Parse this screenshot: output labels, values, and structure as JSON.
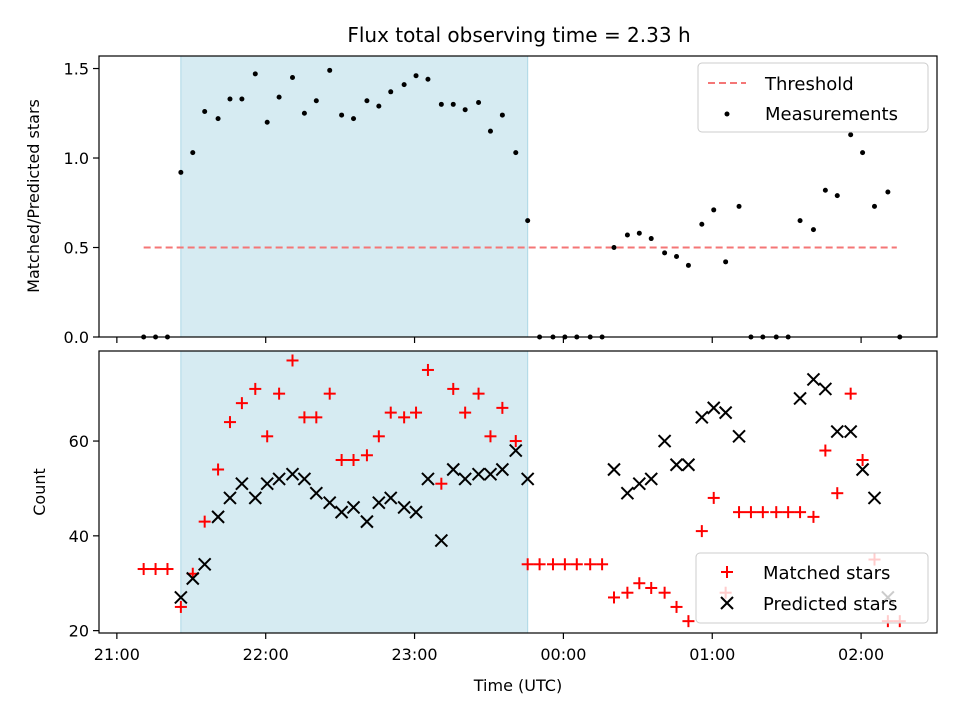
{
  "chart_data": {
    "title": "Flux total observing time = 2.33 h",
    "xlabel": "Time (UTC)",
    "x_tick_labels": [
      "21:00",
      "22:00",
      "23:00",
      "00:00",
      "01:00",
      "02:00"
    ],
    "x_ticks_hours": [
      21,
      22,
      23,
      24,
      25,
      26
    ],
    "xlim_hours": [
      20.88,
      26.51
    ],
    "shaded_interval_hours": [
      21.43,
      23.76
    ],
    "shade_color": "#add8e6",
    "top": {
      "type": "scatter",
      "ylabel": "Matched/Predicted stars",
      "ylim": [
        0,
        1.57
      ],
      "y_ticks": [
        0.0,
        0.5,
        1.0,
        1.5
      ],
      "y_tick_labels": [
        "0.0",
        "0.5",
        "1.0",
        "1.5"
      ],
      "threshold": {
        "name": "Threshold",
        "value": 0.5,
        "x_range_hours": [
          21.18,
          26.24
        ],
        "color": "#f47676"
      },
      "series_name": "Measurements",
      "legend_position": "top-right",
      "points": [
        [
          21.18,
          0
        ],
        [
          21.26,
          0
        ],
        [
          21.34,
          0
        ],
        [
          21.43,
          0.92
        ],
        [
          21.51,
          1.03
        ],
        [
          21.59,
          1.26
        ],
        [
          21.68,
          1.22
        ],
        [
          21.76,
          1.33
        ],
        [
          21.84,
          1.33
        ],
        [
          21.93,
          1.47
        ],
        [
          22.01,
          1.2
        ],
        [
          22.09,
          1.34
        ],
        [
          22.18,
          1.45
        ],
        [
          22.26,
          1.25
        ],
        [
          22.34,
          1.32
        ],
        [
          22.43,
          1.49
        ],
        [
          22.51,
          1.24
        ],
        [
          22.59,
          1.22
        ],
        [
          22.68,
          1.32
        ],
        [
          22.76,
          1.29
        ],
        [
          22.84,
          1.37
        ],
        [
          22.93,
          1.41
        ],
        [
          23.01,
          1.46
        ],
        [
          23.09,
          1.44
        ],
        [
          23.18,
          1.3
        ],
        [
          23.26,
          1.3
        ],
        [
          23.34,
          1.27
        ],
        [
          23.43,
          1.31
        ],
        [
          23.51,
          1.15
        ],
        [
          23.59,
          1.24
        ],
        [
          23.68,
          1.03
        ],
        [
          23.76,
          0.65
        ],
        [
          23.84,
          0
        ],
        [
          23.93,
          0
        ],
        [
          24.01,
          0
        ],
        [
          24.09,
          0
        ],
        [
          24.18,
          0
        ],
        [
          24.26,
          0
        ],
        [
          24.34,
          0.5
        ],
        [
          24.43,
          0.57
        ],
        [
          24.51,
          0.58
        ],
        [
          24.59,
          0.55
        ],
        [
          24.68,
          0.47
        ],
        [
          24.76,
          0.45
        ],
        [
          24.84,
          0.4
        ],
        [
          24.93,
          0.63
        ],
        [
          25.01,
          0.71
        ],
        [
          25.09,
          0.42
        ],
        [
          25.18,
          0.73
        ],
        [
          25.26,
          0
        ],
        [
          25.34,
          0
        ],
        [
          25.43,
          0
        ],
        [
          25.51,
          0
        ],
        [
          25.59,
          0.65
        ],
        [
          25.68,
          0.6
        ],
        [
          25.76,
          0.82
        ],
        [
          25.84,
          0.79
        ],
        [
          25.93,
          1.13
        ],
        [
          26.01,
          1.03
        ],
        [
          26.09,
          0.73
        ],
        [
          26.18,
          0.81
        ],
        [
          26.26,
          0
        ]
      ]
    },
    "bottom": {
      "type": "scatter",
      "ylabel": "Count",
      "ylim": [
        19.5,
        79
      ],
      "y_ticks": [
        20,
        40,
        60
      ],
      "y_tick_labels": [
        "20",
        "40",
        "60"
      ],
      "legend_position": "bottom-right",
      "series": [
        {
          "name": "Matched stars",
          "marker": "plus",
          "color": "#ff0000",
          "points": [
            [
              21.18,
              33
            ],
            [
              21.26,
              33
            ],
            [
              21.34,
              33
            ],
            [
              21.43,
              25
            ],
            [
              21.51,
              32
            ],
            [
              21.59,
              43
            ],
            [
              21.68,
              54
            ],
            [
              21.76,
              64
            ],
            [
              21.84,
              68
            ],
            [
              21.93,
              71
            ],
            [
              22.01,
              61
            ],
            [
              22.09,
              70
            ],
            [
              22.18,
              77
            ],
            [
              22.26,
              65
            ],
            [
              22.34,
              65
            ],
            [
              22.43,
              70
            ],
            [
              22.51,
              56
            ],
            [
              22.59,
              56
            ],
            [
              22.68,
              57
            ],
            [
              22.76,
              61
            ],
            [
              22.84,
              66
            ],
            [
              22.93,
              65
            ],
            [
              23.01,
              66
            ],
            [
              23.09,
              75
            ],
            [
              23.18,
              51
            ],
            [
              23.26,
              71
            ],
            [
              23.34,
              66
            ],
            [
              23.43,
              70
            ],
            [
              23.51,
              61
            ],
            [
              23.59,
              67
            ],
            [
              23.68,
              60
            ],
            [
              23.76,
              34
            ],
            [
              23.84,
              34
            ],
            [
              23.93,
              34
            ],
            [
              24.01,
              34
            ],
            [
              24.09,
              34
            ],
            [
              24.18,
              34
            ],
            [
              24.26,
              34
            ],
            [
              24.34,
              27
            ],
            [
              24.43,
              28
            ],
            [
              24.51,
              30
            ],
            [
              24.59,
              29
            ],
            [
              24.68,
              28
            ],
            [
              24.76,
              25
            ],
            [
              24.84,
              22
            ],
            [
              24.93,
              41
            ],
            [
              25.01,
              48
            ],
            [
              25.09,
              28
            ],
            [
              25.18,
              45
            ],
            [
              25.26,
              45
            ],
            [
              25.34,
              45
            ],
            [
              25.43,
              45
            ],
            [
              25.51,
              45
            ],
            [
              25.59,
              45
            ],
            [
              25.68,
              44
            ],
            [
              25.76,
              58
            ],
            [
              25.84,
              49
            ],
            [
              25.93,
              70
            ],
            [
              26.01,
              56
            ],
            [
              26.09,
              35
            ],
            [
              26.18,
              22
            ],
            [
              26.26,
              22
            ]
          ]
        },
        {
          "name": "Predicted stars",
          "marker": "x",
          "color": "#000000",
          "points": [
            [
              21.43,
              27
            ],
            [
              21.51,
              31
            ],
            [
              21.59,
              34
            ],
            [
              21.68,
              44
            ],
            [
              21.76,
              48
            ],
            [
              21.84,
              51
            ],
            [
              21.93,
              48
            ],
            [
              22.01,
              51
            ],
            [
              22.09,
              52
            ],
            [
              22.18,
              53
            ],
            [
              22.26,
              52
            ],
            [
              22.34,
              49
            ],
            [
              22.43,
              47
            ],
            [
              22.51,
              45
            ],
            [
              22.59,
              46
            ],
            [
              22.68,
              43
            ],
            [
              22.76,
              47
            ],
            [
              22.84,
              48
            ],
            [
              22.93,
              46
            ],
            [
              23.01,
              45
            ],
            [
              23.09,
              52
            ],
            [
              23.18,
              39
            ],
            [
              23.26,
              54
            ],
            [
              23.34,
              52
            ],
            [
              23.43,
              53
            ],
            [
              23.51,
              53
            ],
            [
              23.59,
              54
            ],
            [
              23.68,
              58
            ],
            [
              23.76,
              52
            ],
            [
              24.34,
              54
            ],
            [
              24.43,
              49
            ],
            [
              24.51,
              51
            ],
            [
              24.59,
              52
            ],
            [
              24.68,
              60
            ],
            [
              24.76,
              55
            ],
            [
              24.84,
              55
            ],
            [
              24.93,
              65
            ],
            [
              25.01,
              67
            ],
            [
              25.09,
              66
            ],
            [
              25.18,
              61
            ],
            [
              25.59,
              69
            ],
            [
              25.68,
              73
            ],
            [
              25.76,
              71
            ],
            [
              25.84,
              62
            ],
            [
              25.93,
              62
            ],
            [
              26.01,
              54
            ],
            [
              26.09,
              48
            ],
            [
              26.18,
              27
            ]
          ]
        }
      ]
    }
  }
}
